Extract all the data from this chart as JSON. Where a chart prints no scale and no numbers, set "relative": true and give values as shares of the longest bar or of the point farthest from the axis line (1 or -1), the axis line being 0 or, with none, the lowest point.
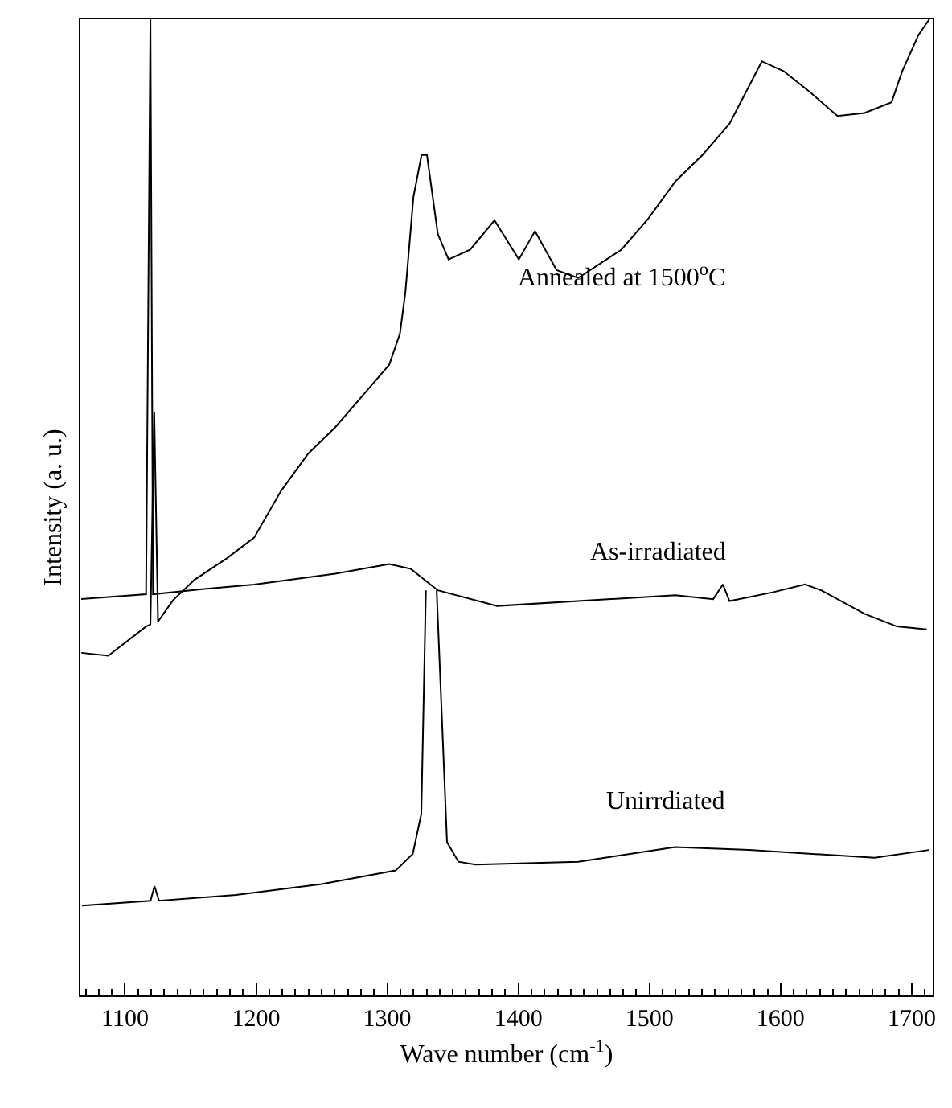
{
  "chart_data": {
    "type": "line",
    "relative": true,
    "xlabel": "Wave number (cm$^{-1}$)",
    "ylabel": "Intensity (a. u.)",
    "xlim": [
      1066,
      1716
    ],
    "xticks": [
      1100,
      1200,
      1300,
      1400,
      1500,
      1600,
      1700
    ],
    "legend": false,
    "tick_labels": "x",
    "marker": "none",
    "line_style": "solid",
    "series": [
      {
        "name": "Annealed at 1500$^{o}$C",
        "color": "#000000",
        "x": [
          1066.7,
          1087.3,
          1116.1,
          1119.4,
          1122.3,
          1125.2,
          1136.7,
          1153.2,
          1177.9,
          1198.5,
          1219.1,
          1239.7,
          1260.3,
          1280.9,
          1301.5,
          1309.7,
          1313.9,
          1320,
          1326.2,
          1330.3,
          1338.6,
          1346.8,
          1363.3,
          1381.8,
          1400.4,
          1412.7,
          1429.2,
          1445.6,
          1478.6,
          1499.2,
          1519.8,
          1540.4,
          1561,
          1573.4,
          1585.7,
          1602.2,
          1622.8,
          1643.4,
          1664,
          1684.6,
          1692.8,
          1705.2,
          1713.4
        ],
        "values": [
          0.351,
          0.348,
          0.378,
          0.38,
          0.598,
          0.383,
          0.405,
          0.426,
          0.448,
          0.469,
          0.517,
          0.555,
          0.582,
          0.614,
          0.646,
          0.678,
          0.721,
          0.818,
          0.861,
          0.861,
          0.78,
          0.754,
          0.764,
          0.794,
          0.754,
          0.783,
          0.743,
          0.735,
          0.764,
          0.796,
          0.834,
          0.861,
          0.893,
          0.925,
          0.957,
          0.947,
          0.925,
          0.901,
          0.904,
          0.915,
          0.947,
          0.984,
          1
        ]
      },
      {
        "name": "As-irradiated",
        "color": "#000000",
        "x": [
          1066.7,
          1116.1,
          1119.4,
          1121.4,
          1157.4,
          1198.5,
          1260.3,
          1301.5,
          1317.9,
          1338.6,
          1383.9,
          1458,
          1519.8,
          1548.6,
          1556,
          1561,
          1594,
          1618.7,
          1631,
          1664,
          1688.7,
          1711.4
        ],
        "values": [
          0.406,
          0.411,
          1,
          0.411,
          0.416,
          0.421,
          0.432,
          0.442,
          0.437,
          0.415,
          0.399,
          0.405,
          0.41,
          0.406,
          0.421,
          0.404,
          0.413,
          0.421,
          0.415,
          0.391,
          0.378,
          0.375
        ]
      },
      {
        "name": "Unirrdiated",
        "color": "#000000",
        "x": [
          1067.3,
          1119.5,
          1122.5,
          1126,
          1184.7,
          1250,
          1306.4,
          1319.5,
          1326,
          1329.5,
          1333.6,
          1337.7,
          1345.6,
          1354.3,
          1367.3,
          1445.6,
          1519.5,
          1576,
          1671.7,
          1713
        ],
        "values": [
          0.092,
          0.097,
          0.112,
          0.097,
          0.103,
          0.114,
          0.128,
          0.145,
          0.186,
          0.415,
          null,
          0.415,
          0.157,
          0.137,
          0.134,
          0.137,
          0.152,
          0.149,
          0.141,
          0.149
        ]
      }
    ]
  }
}
